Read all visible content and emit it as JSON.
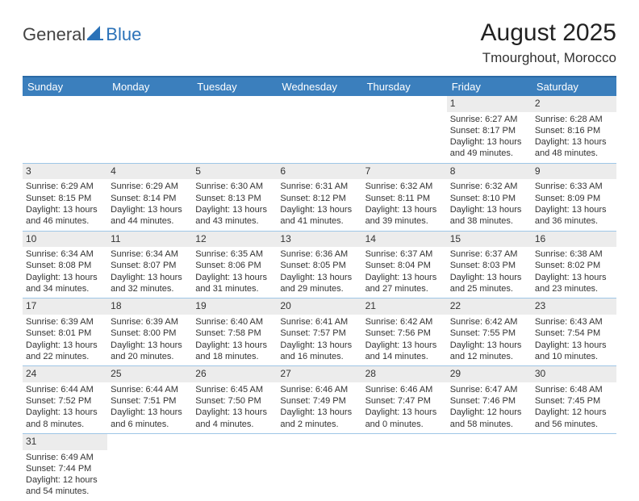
{
  "logo": {
    "text1": "General",
    "text2": "Blue"
  },
  "title": "August 2025",
  "location": "Tmourghout, Morocco",
  "colors": {
    "header_bg": "#3b7fbd",
    "header_border_top": "#2b6aa5",
    "cell_border": "#9ec6e6",
    "daynum_bg": "#ececec",
    "page_bg": "#ffffff",
    "logo_blue": "#2b72b8"
  },
  "day_headers": [
    "Sunday",
    "Monday",
    "Tuesday",
    "Wednesday",
    "Thursday",
    "Friday",
    "Saturday"
  ],
  "weeks": [
    [
      null,
      null,
      null,
      null,
      null,
      {
        "n": "1",
        "sr": "Sunrise: 6:27 AM",
        "ss": "Sunset: 8:17 PM",
        "d1": "Daylight: 13 hours",
        "d2": "and 49 minutes."
      },
      {
        "n": "2",
        "sr": "Sunrise: 6:28 AM",
        "ss": "Sunset: 8:16 PM",
        "d1": "Daylight: 13 hours",
        "d2": "and 48 minutes."
      }
    ],
    [
      {
        "n": "3",
        "sr": "Sunrise: 6:29 AM",
        "ss": "Sunset: 8:15 PM",
        "d1": "Daylight: 13 hours",
        "d2": "and 46 minutes."
      },
      {
        "n": "4",
        "sr": "Sunrise: 6:29 AM",
        "ss": "Sunset: 8:14 PM",
        "d1": "Daylight: 13 hours",
        "d2": "and 44 minutes."
      },
      {
        "n": "5",
        "sr": "Sunrise: 6:30 AM",
        "ss": "Sunset: 8:13 PM",
        "d1": "Daylight: 13 hours",
        "d2": "and 43 minutes."
      },
      {
        "n": "6",
        "sr": "Sunrise: 6:31 AM",
        "ss": "Sunset: 8:12 PM",
        "d1": "Daylight: 13 hours",
        "d2": "and 41 minutes."
      },
      {
        "n": "7",
        "sr": "Sunrise: 6:32 AM",
        "ss": "Sunset: 8:11 PM",
        "d1": "Daylight: 13 hours",
        "d2": "and 39 minutes."
      },
      {
        "n": "8",
        "sr": "Sunrise: 6:32 AM",
        "ss": "Sunset: 8:10 PM",
        "d1": "Daylight: 13 hours",
        "d2": "and 38 minutes."
      },
      {
        "n": "9",
        "sr": "Sunrise: 6:33 AM",
        "ss": "Sunset: 8:09 PM",
        "d1": "Daylight: 13 hours",
        "d2": "and 36 minutes."
      }
    ],
    [
      {
        "n": "10",
        "sr": "Sunrise: 6:34 AM",
        "ss": "Sunset: 8:08 PM",
        "d1": "Daylight: 13 hours",
        "d2": "and 34 minutes."
      },
      {
        "n": "11",
        "sr": "Sunrise: 6:34 AM",
        "ss": "Sunset: 8:07 PM",
        "d1": "Daylight: 13 hours",
        "d2": "and 32 minutes."
      },
      {
        "n": "12",
        "sr": "Sunrise: 6:35 AM",
        "ss": "Sunset: 8:06 PM",
        "d1": "Daylight: 13 hours",
        "d2": "and 31 minutes."
      },
      {
        "n": "13",
        "sr": "Sunrise: 6:36 AM",
        "ss": "Sunset: 8:05 PM",
        "d1": "Daylight: 13 hours",
        "d2": "and 29 minutes."
      },
      {
        "n": "14",
        "sr": "Sunrise: 6:37 AM",
        "ss": "Sunset: 8:04 PM",
        "d1": "Daylight: 13 hours",
        "d2": "and 27 minutes."
      },
      {
        "n": "15",
        "sr": "Sunrise: 6:37 AM",
        "ss": "Sunset: 8:03 PM",
        "d1": "Daylight: 13 hours",
        "d2": "and 25 minutes."
      },
      {
        "n": "16",
        "sr": "Sunrise: 6:38 AM",
        "ss": "Sunset: 8:02 PM",
        "d1": "Daylight: 13 hours",
        "d2": "and 23 minutes."
      }
    ],
    [
      {
        "n": "17",
        "sr": "Sunrise: 6:39 AM",
        "ss": "Sunset: 8:01 PM",
        "d1": "Daylight: 13 hours",
        "d2": "and 22 minutes."
      },
      {
        "n": "18",
        "sr": "Sunrise: 6:39 AM",
        "ss": "Sunset: 8:00 PM",
        "d1": "Daylight: 13 hours",
        "d2": "and 20 minutes."
      },
      {
        "n": "19",
        "sr": "Sunrise: 6:40 AM",
        "ss": "Sunset: 7:58 PM",
        "d1": "Daylight: 13 hours",
        "d2": "and 18 minutes."
      },
      {
        "n": "20",
        "sr": "Sunrise: 6:41 AM",
        "ss": "Sunset: 7:57 PM",
        "d1": "Daylight: 13 hours",
        "d2": "and 16 minutes."
      },
      {
        "n": "21",
        "sr": "Sunrise: 6:42 AM",
        "ss": "Sunset: 7:56 PM",
        "d1": "Daylight: 13 hours",
        "d2": "and 14 minutes."
      },
      {
        "n": "22",
        "sr": "Sunrise: 6:42 AM",
        "ss": "Sunset: 7:55 PM",
        "d1": "Daylight: 13 hours",
        "d2": "and 12 minutes."
      },
      {
        "n": "23",
        "sr": "Sunrise: 6:43 AM",
        "ss": "Sunset: 7:54 PM",
        "d1": "Daylight: 13 hours",
        "d2": "and 10 minutes."
      }
    ],
    [
      {
        "n": "24",
        "sr": "Sunrise: 6:44 AM",
        "ss": "Sunset: 7:52 PM",
        "d1": "Daylight: 13 hours",
        "d2": "and 8 minutes."
      },
      {
        "n": "25",
        "sr": "Sunrise: 6:44 AM",
        "ss": "Sunset: 7:51 PM",
        "d1": "Daylight: 13 hours",
        "d2": "and 6 minutes."
      },
      {
        "n": "26",
        "sr": "Sunrise: 6:45 AM",
        "ss": "Sunset: 7:50 PM",
        "d1": "Daylight: 13 hours",
        "d2": "and 4 minutes."
      },
      {
        "n": "27",
        "sr": "Sunrise: 6:46 AM",
        "ss": "Sunset: 7:49 PM",
        "d1": "Daylight: 13 hours",
        "d2": "and 2 minutes."
      },
      {
        "n": "28",
        "sr": "Sunrise: 6:46 AM",
        "ss": "Sunset: 7:47 PM",
        "d1": "Daylight: 13 hours",
        "d2": "and 0 minutes."
      },
      {
        "n": "29",
        "sr": "Sunrise: 6:47 AM",
        "ss": "Sunset: 7:46 PM",
        "d1": "Daylight: 12 hours",
        "d2": "and 58 minutes."
      },
      {
        "n": "30",
        "sr": "Sunrise: 6:48 AM",
        "ss": "Sunset: 7:45 PM",
        "d1": "Daylight: 12 hours",
        "d2": "and 56 minutes."
      }
    ],
    [
      {
        "n": "31",
        "sr": "Sunrise: 6:49 AM",
        "ss": "Sunset: 7:44 PM",
        "d1": "Daylight: 12 hours",
        "d2": "and 54 minutes."
      },
      null,
      null,
      null,
      null,
      null,
      null
    ]
  ]
}
